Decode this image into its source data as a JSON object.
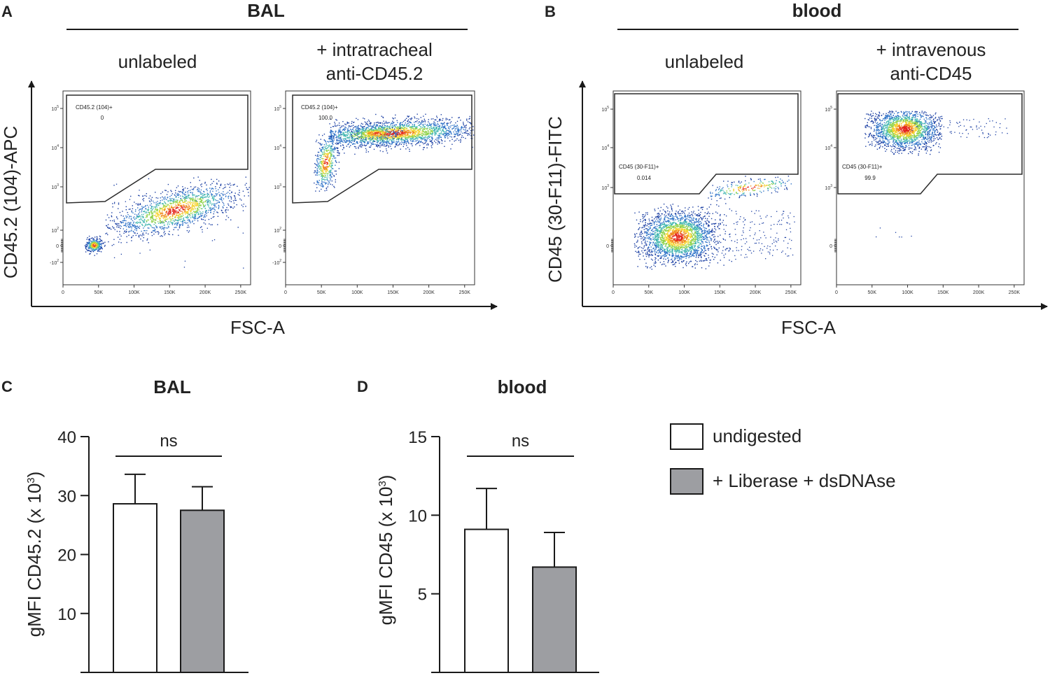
{
  "colors": {
    "ink": "#1a1a1a",
    "bar_undigested": "#ffffff",
    "bar_liberase": "#9d9ea2",
    "density": [
      "#1b3fa3",
      "#2f73c8",
      "#41b6b0",
      "#8fd24a",
      "#f5d32a",
      "#f08a1e",
      "#e3231a"
    ]
  },
  "panel_A": {
    "letter": "A",
    "title": "BAL",
    "col1": "unlabeled",
    "col2_line1": "+ intratracheal",
    "col2_line2": "anti-CD45.2",
    "y_label": "CD45.2 (104)-APC",
    "x_label": "FSC-A",
    "gate1_name": "CD45.2 (104)+",
    "gate1_value": "0",
    "gate2_name": "CD45.2 (104)+",
    "gate2_value": "100.0"
  },
  "panel_B": {
    "letter": "B",
    "title": "blood",
    "col1": "unlabeled",
    "col2_line1": "+ intravenous",
    "col2_line2": "anti-CD45",
    "y_label": "CD45 (30-F11)-FITC",
    "x_label": "FSC-A",
    "gate1_name": "CD45 (30-F11)+",
    "gate1_value": "0.014",
    "gate2_name": "CD45 (30-F11)+",
    "gate2_value": "99.9"
  },
  "flow_axes": {
    "x_ticks": [
      "0",
      "50K",
      "100K",
      "150K",
      "200K",
      "250K"
    ],
    "a_y_ticks": [
      {
        "base": "10",
        "exp": "5"
      },
      {
        "base": "10",
        "exp": "4"
      },
      {
        "base": "10",
        "exp": "3"
      },
      {
        "base": "10",
        "exp": "2"
      },
      {
        "base": "0",
        "exp": ""
      },
      {
        "base": "-10",
        "exp": "2"
      }
    ],
    "b_y_ticks": [
      {
        "base": "10",
        "exp": "5"
      },
      {
        "base": "10",
        "exp": "4"
      },
      {
        "base": "10",
        "exp": "3"
      },
      {
        "base": "0",
        "exp": ""
      }
    ]
  },
  "legend": {
    "undigested": "undigested",
    "liberase": "+ Liberase + dsDNAse"
  },
  "chart_data": [
    {
      "type": "bar",
      "panel": "C",
      "title": "BAL",
      "ylabel": "gMFI CD45.2 (x 10³)",
      "ylabel_main": "gMFI CD45.2 (x 10",
      "ylabel_exp": "3",
      "ylabel_close": ")",
      "categories": [
        "undigested",
        "+ Liberase + dsDNAse"
      ],
      "values": [
        28.6,
        27.5
      ],
      "errors": [
        5.0,
        4.0
      ],
      "ylim": [
        0,
        40
      ],
      "yticks": [
        10,
        20,
        30,
        40
      ],
      "significance": "ns"
    },
    {
      "type": "bar",
      "panel": "D",
      "title": "blood",
      "ylabel": "gMFI CD45 (x 10³)",
      "ylabel_main": "gMFI CD45 (x 10",
      "ylabel_exp": "3",
      "ylabel_close": ")",
      "categories": [
        "undigested",
        "+ Liberase + dsDNAse"
      ],
      "values": [
        9.1,
        6.7
      ],
      "errors": [
        2.6,
        2.2
      ],
      "ylim": [
        0,
        15
      ],
      "yticks": [
        5,
        10,
        15
      ],
      "significance": "ns"
    }
  ]
}
